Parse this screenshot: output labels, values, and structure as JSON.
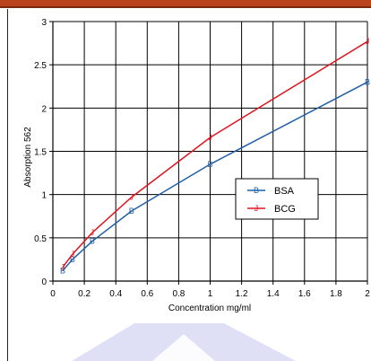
{
  "chart_data": {
    "type": "line",
    "xlabel": "Concentration mg/ml",
    "ylabel": "Absorption 562",
    "xlim": [
      0,
      2
    ],
    "ylim": [
      0,
      3
    ],
    "x_ticks": [
      "0",
      "0.2",
      "0.4",
      "0.6",
      "0.8",
      "1",
      "1.2",
      "1.4",
      "1.6",
      "1.8",
      "2"
    ],
    "y_ticks": [
      "0",
      "0.5",
      "1",
      "1.5",
      "2",
      "2.5",
      "3"
    ],
    "grid": true,
    "legend_position": "center-right",
    "series": [
      {
        "name": "BSA",
        "color": "#1f5fa8",
        "marker": "B",
        "x": [
          0.0625,
          0.125,
          0.25,
          0.5,
          1,
          2
        ],
        "y": [
          0.12,
          0.25,
          0.46,
          0.81,
          1.35,
          2.3
        ]
      },
      {
        "name": "BCG",
        "color": "#e0141e",
        "marker": "J",
        "x": [
          0.0625,
          0.125,
          0.25,
          0.5,
          1,
          2
        ],
        "y": [
          0.16,
          0.31,
          0.56,
          0.97,
          1.66,
          2.77
        ]
      }
    ]
  }
}
